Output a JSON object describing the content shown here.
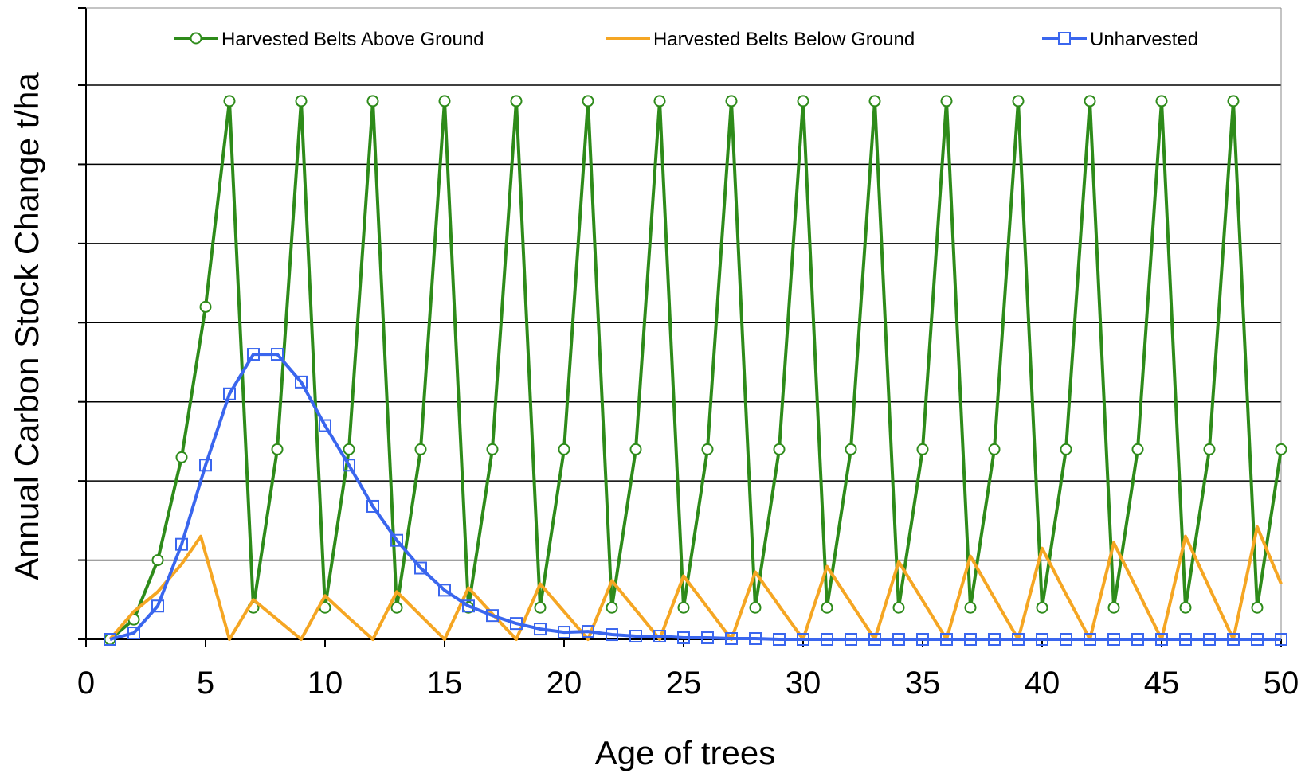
{
  "chart_data": {
    "type": "line",
    "title": "",
    "xlabel": "Age of trees",
    "ylabel": "Annual Carbon Stock Change t/ha",
    "xlim": [
      0,
      50
    ],
    "ylim": [
      0,
      7
    ],
    "y_ticks_labeled": false,
    "x_ticks": [
      0,
      5,
      10,
      15,
      20,
      25,
      30,
      35,
      40,
      45,
      50
    ],
    "grid": "horizontal",
    "legend_position": "top",
    "series": [
      {
        "name": "Harvested Belts Above Ground",
        "color": "#2e8b1a",
        "marker": "circle",
        "x": [
          1,
          2,
          3,
          4,
          5,
          6,
          7,
          8,
          9,
          10,
          11,
          12,
          13,
          14,
          15,
          16,
          17,
          18,
          19,
          20,
          21,
          22,
          23,
          24,
          25,
          26,
          27,
          28,
          29,
          30,
          31,
          32,
          33,
          34,
          35,
          36,
          37,
          38,
          39,
          40,
          41,
          42,
          43,
          44,
          45,
          46,
          47,
          48,
          49,
          50
        ],
        "values": [
          0.0,
          0.25,
          1.0,
          2.3,
          4.2,
          6.8,
          0.4,
          2.4,
          6.8,
          0.4,
          2.4,
          6.8,
          0.4,
          2.4,
          6.8,
          0.4,
          2.4,
          6.8,
          0.4,
          2.4,
          6.8,
          0.4,
          2.4,
          6.8,
          0.4,
          2.4,
          6.8,
          0.4,
          2.4,
          6.8,
          0.4,
          2.4,
          6.8,
          0.4,
          2.4,
          6.8,
          0.4,
          2.4,
          6.8,
          0.4,
          2.4,
          6.8,
          0.4,
          2.4,
          6.8,
          0.4,
          2.4,
          6.8,
          0.4,
          2.4
        ]
      },
      {
        "name": "Harvested Belts Below Ground",
        "color": "#f5a623",
        "marker": "none",
        "x": [
          1,
          2,
          3,
          4,
          4.8,
          6,
          7,
          8,
          9,
          10,
          11,
          12,
          13,
          14,
          15,
          16,
          17,
          18,
          19,
          20,
          21,
          22,
          23,
          24,
          25,
          26,
          27,
          28,
          29,
          30,
          31,
          32,
          33,
          34,
          35,
          36,
          37,
          38,
          39,
          40,
          41,
          42,
          43,
          44,
          45,
          46,
          47,
          48,
          49,
          50
        ],
        "values": [
          0.0,
          0.35,
          0.6,
          0.95,
          1.3,
          0.0,
          0.5,
          0.25,
          0.0,
          0.55,
          0.27,
          0.0,
          0.6,
          0.3,
          0.0,
          0.65,
          0.32,
          0.0,
          0.7,
          0.35,
          0.0,
          0.74,
          0.37,
          0.0,
          0.8,
          0.4,
          0.0,
          0.85,
          0.42,
          0.0,
          0.92,
          0.46,
          0.0,
          0.98,
          0.49,
          0.0,
          1.05,
          0.52,
          0.0,
          1.15,
          0.57,
          0.0,
          1.22,
          0.61,
          0.0,
          1.3,
          0.65,
          0.0,
          1.42,
          0.7
        ]
      },
      {
        "name": "Unharvested",
        "color": "#3a66ee",
        "marker": "square",
        "x": [
          1,
          2,
          3,
          4,
          5,
          6,
          7,
          8,
          9,
          10,
          11,
          12,
          13,
          14,
          15,
          16,
          17,
          18,
          19,
          20,
          21,
          22,
          23,
          24,
          25,
          26,
          27,
          28,
          29,
          30,
          31,
          32,
          33,
          34,
          35,
          36,
          37,
          38,
          39,
          40,
          41,
          42,
          43,
          44,
          45,
          46,
          47,
          48,
          49,
          50
        ],
        "values": [
          0.0,
          0.08,
          0.42,
          1.2,
          2.2,
          3.1,
          3.6,
          3.6,
          3.25,
          2.7,
          2.2,
          1.68,
          1.25,
          0.9,
          0.62,
          0.42,
          0.3,
          0.2,
          0.13,
          0.09,
          0.1,
          0.06,
          0.04,
          0.04,
          0.02,
          0.02,
          0.01,
          0.01,
          0.0,
          0.0,
          0.0,
          0.0,
          0.0,
          0.0,
          0.0,
          0.0,
          0.0,
          0.0,
          0.0,
          0.0,
          0.0,
          0.0,
          0.0,
          0.0,
          0.0,
          0.0,
          0.0,
          0.0,
          0.0,
          0.0
        ]
      }
    ]
  }
}
